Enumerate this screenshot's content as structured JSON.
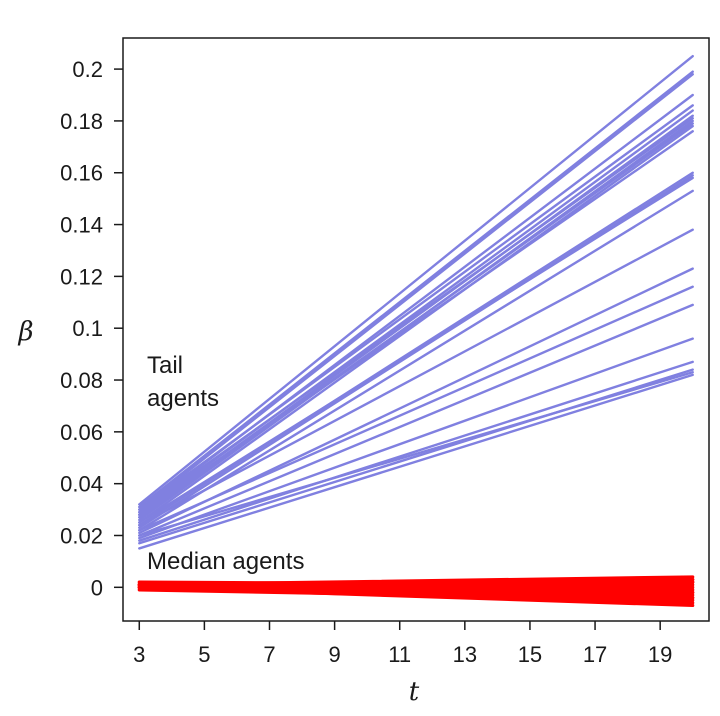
{
  "chart_data": {
    "type": "line",
    "title": "",
    "xlabel": "t",
    "ylabel": "β",
    "xlim": [
      2.5,
      20.5
    ],
    "ylim": [
      -0.013,
      0.212
    ],
    "xticks": [
      3,
      5,
      7,
      9,
      11,
      13,
      15,
      17,
      19
    ],
    "xtick_labels": [
      "3",
      "5",
      "7",
      "9",
      "11",
      "13",
      "15",
      "17",
      "19"
    ],
    "yticks": [
      0,
      0.02,
      0.04,
      0.06,
      0.08,
      0.1,
      0.12,
      0.14,
      0.16,
      0.18,
      0.2
    ],
    "ytick_labels": [
      "0",
      "0.02",
      "0.04",
      "0.06",
      "0.08",
      "0.1",
      "0.12",
      "0.14",
      "0.16",
      "0.18",
      "0.2"
    ],
    "annotations": [
      {
        "id": "tail",
        "lines": [
          "Tail",
          "agents"
        ]
      },
      {
        "id": "median",
        "lines": [
          "Median agents"
        ]
      }
    ],
    "series": [
      {
        "name": "Tail agents",
        "color": "#8080e0",
        "x": [
          3,
          20
        ],
        "lines": [
          [
            0.032,
            0.205
          ],
          [
            0.031,
            0.199
          ],
          [
            0.03,
            0.198
          ],
          [
            0.029,
            0.19
          ],
          [
            0.03,
            0.186
          ],
          [
            0.028,
            0.184
          ],
          [
            0.027,
            0.182
          ],
          [
            0.029,
            0.181
          ],
          [
            0.026,
            0.18
          ],
          [
            0.027,
            0.179
          ],
          [
            0.025,
            0.178
          ],
          [
            0.028,
            0.176
          ],
          [
            0.024,
            0.16
          ],
          [
            0.023,
            0.159
          ],
          [
            0.025,
            0.158
          ],
          [
            0.022,
            0.153
          ],
          [
            0.024,
            0.138
          ],
          [
            0.021,
            0.123
          ],
          [
            0.022,
            0.116
          ],
          [
            0.02,
            0.109
          ],
          [
            0.019,
            0.096
          ],
          [
            0.018,
            0.087
          ],
          [
            0.017,
            0.084
          ],
          [
            0.015,
            0.082
          ],
          [
            0.02,
            0.083
          ]
        ]
      },
      {
        "name": "Median agents",
        "color": "#ff0000",
        "x": [
          3,
          20
        ],
        "lines": [
          [
            0.001,
            0.004
          ],
          [
            0.001,
            0.003
          ],
          [
            0.0,
            0.002
          ],
          [
            0.002,
            0.001
          ],
          [
            0.001,
            0.0
          ],
          [
            0.0,
            -0.001
          ],
          [
            0.001,
            -0.002
          ],
          [
            0.0,
            -0.004
          ],
          [
            0.001,
            -0.006
          ],
          [
            0.0,
            -0.007
          ],
          [
            -0.001,
            -0.005
          ],
          [
            0.001,
            -0.003
          ],
          [
            0.0,
            0.003
          ],
          [
            0.001,
            0.002
          ],
          [
            0.0,
            -0.002
          ],
          [
            0.001,
            -0.004
          ]
        ]
      }
    ]
  }
}
